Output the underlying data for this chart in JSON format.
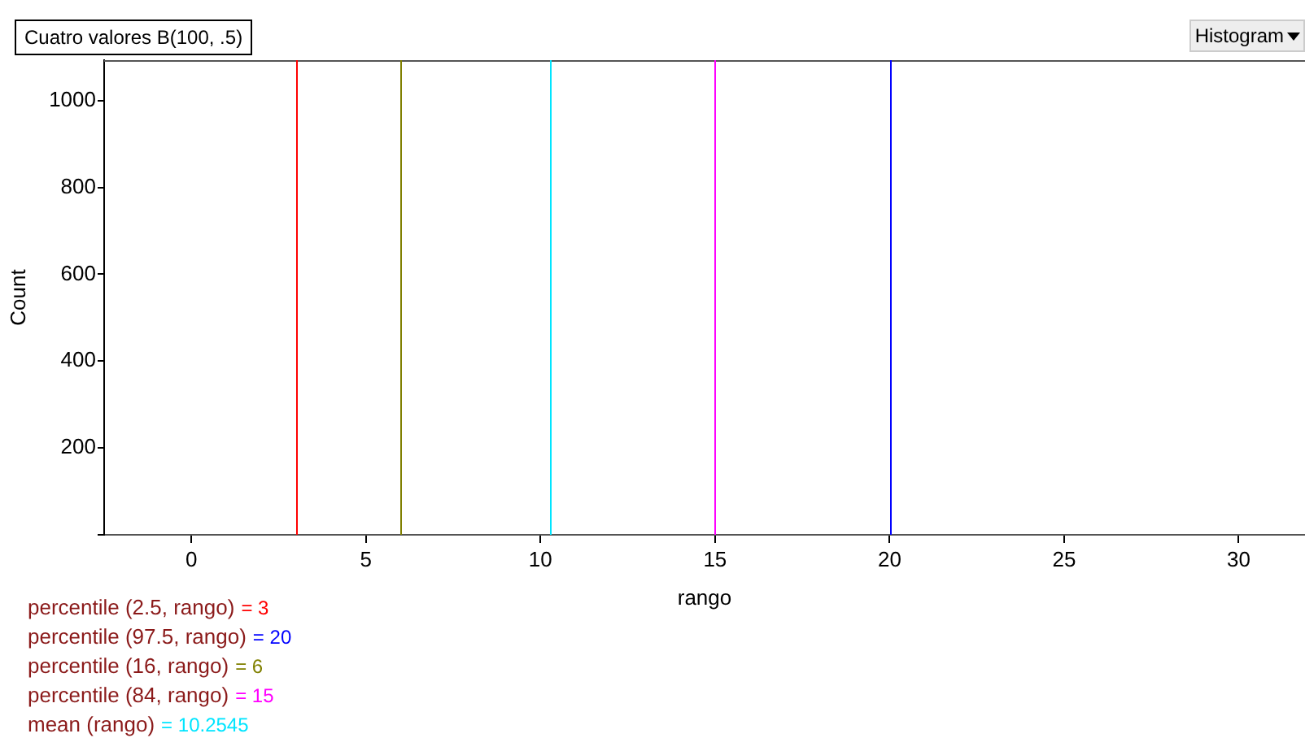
{
  "chart_data": {
    "type": "histogram",
    "title": "Cuatro valores B(100, .5)",
    "xlabel": "rango",
    "ylabel": "Count",
    "xlim": [
      -2.5,
      31.9
    ],
    "xticks": [
      0,
      5,
      10,
      15,
      20,
      25,
      30
    ],
    "ylim": [
      0,
      1093
    ],
    "yticks": [
      {
        "value": 0,
        "label": null
      },
      200,
      400,
      600,
      800,
      1000
    ],
    "grid": false,
    "legend": false,
    "ref_lines": [
      {
        "axis": "x",
        "value": 3,
        "color": "#ff0000"
      },
      {
        "axis": "x",
        "value": 20,
        "color": "#0000ff"
      },
      {
        "axis": "x",
        "value": 6,
        "color": "#808000"
      },
      {
        "axis": "x",
        "value": 15,
        "color": "#ff00ff"
      },
      {
        "axis": "x",
        "value": 10.2545,
        "color": "#00e5ff"
      }
    ],
    "annotations": [
      "percentile (2.5, rango) = 3",
      "percentile (97.5, rango) = 20",
      "percentile (16, rango) = 6",
      "percentile (84, rango) = 15",
      "mean (rango) = 10.2545",
      "Histogram"
    ]
  }
}
